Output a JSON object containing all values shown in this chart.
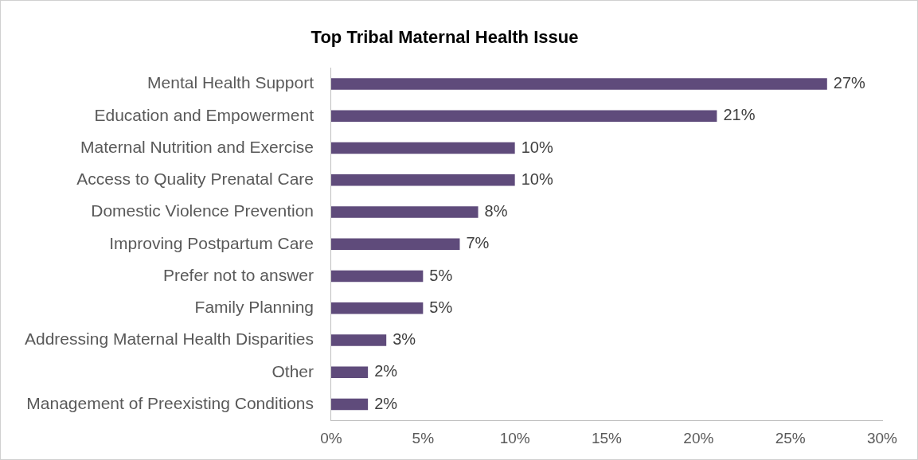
{
  "chart_data": {
    "type": "bar",
    "orientation": "horizontal",
    "title": "Top Tribal Maternal Health Issue",
    "categories": [
      "Mental Health Support",
      "Education and Empowerment",
      "Maternal Nutrition and Exercise",
      "Access to Quality Prenatal Care",
      "Domestic Violence Prevention",
      "Improving Postpartum Care",
      "Prefer not to answer",
      "Family Planning",
      "Addressing Maternal Health Disparities",
      "Other",
      "Management of Preexisting Conditions"
    ],
    "values": [
      27,
      21,
      10,
      10,
      8,
      7,
      5,
      5,
      3,
      2,
      2
    ],
    "value_labels": [
      "27%",
      "21%",
      "10%",
      "10%",
      "8%",
      "7%",
      "5%",
      "5%",
      "3%",
      "2%",
      "2%"
    ],
    "color": "#5f4b7b",
    "xlim": [
      0,
      30
    ],
    "xticks": [
      {
        "value": 0,
        "label": "0%"
      },
      {
        "value": 5,
        "label": "5%"
      },
      {
        "value": 10,
        "label": "10%"
      },
      {
        "value": 15,
        "label": "15%"
      },
      {
        "value": 20,
        "label": "20%"
      },
      {
        "value": 25,
        "label": "25%"
      },
      {
        "value": 30,
        "label": "30%"
      }
    ]
  }
}
